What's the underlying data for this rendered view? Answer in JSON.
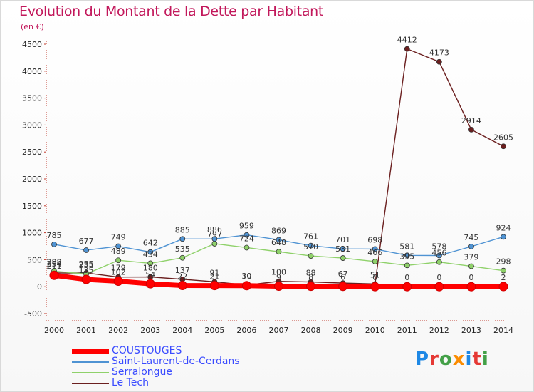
{
  "header": {
    "title": "Evolution du Montant de la Dette par Habitant",
    "unit": "(en €)"
  },
  "logo": {
    "text": "Proxiti",
    "colors": [
      "#1e88e5",
      "#e53935",
      "#43a047",
      "#fb8c00",
      "#1e88e5",
      "#e53935",
      "#43a047"
    ]
  },
  "chart_data": {
    "type": "line",
    "title": "Evolution du Montant de la Dette par Habitant",
    "ylabel": "(en €)",
    "xlabel": "",
    "x": [
      2000,
      2001,
      2002,
      2003,
      2004,
      2005,
      2006,
      2007,
      2008,
      2009,
      2010,
      2011,
      2012,
      2013,
      2014
    ],
    "ylim": [
      -500,
      4500
    ],
    "yticks": [
      -500,
      0,
      500,
      1000,
      1500,
      2000,
      2500,
      3000,
      3500,
      4000,
      4500
    ],
    "grid": false,
    "legend_position": "bottom-left",
    "series": [
      {
        "name": "COUSTOUGES",
        "color": "#ff0000",
        "values": [
          211,
          135,
          102,
          54,
          22,
          21,
          19,
          9,
          8,
          6,
          0,
          0,
          0,
          0,
          2
        ]
      },
      {
        "name": "Saint-Laurent-de-Cerdans",
        "color": "#4f93d3",
        "values": [
          785,
          677,
          749,
          642,
          885,
          886,
          959,
          869,
          761,
          701,
          698,
          581,
          578,
          745,
          924
        ]
      },
      {
        "name": "Serralongue",
        "color": "#8fd16a",
        "values": [
          288,
          235,
          489,
          434,
          535,
          797,
          724,
          648,
          570,
          531,
          466,
          395,
          456,
          379,
          298
        ]
      },
      {
        "name": "Le Tech",
        "color": "#6b1f1f",
        "values": [
          254,
          255,
          179,
          180,
          137,
          91,
          30,
          100,
          88,
          67,
          51,
          4412,
          4173,
          2914,
          2605
        ]
      }
    ]
  }
}
